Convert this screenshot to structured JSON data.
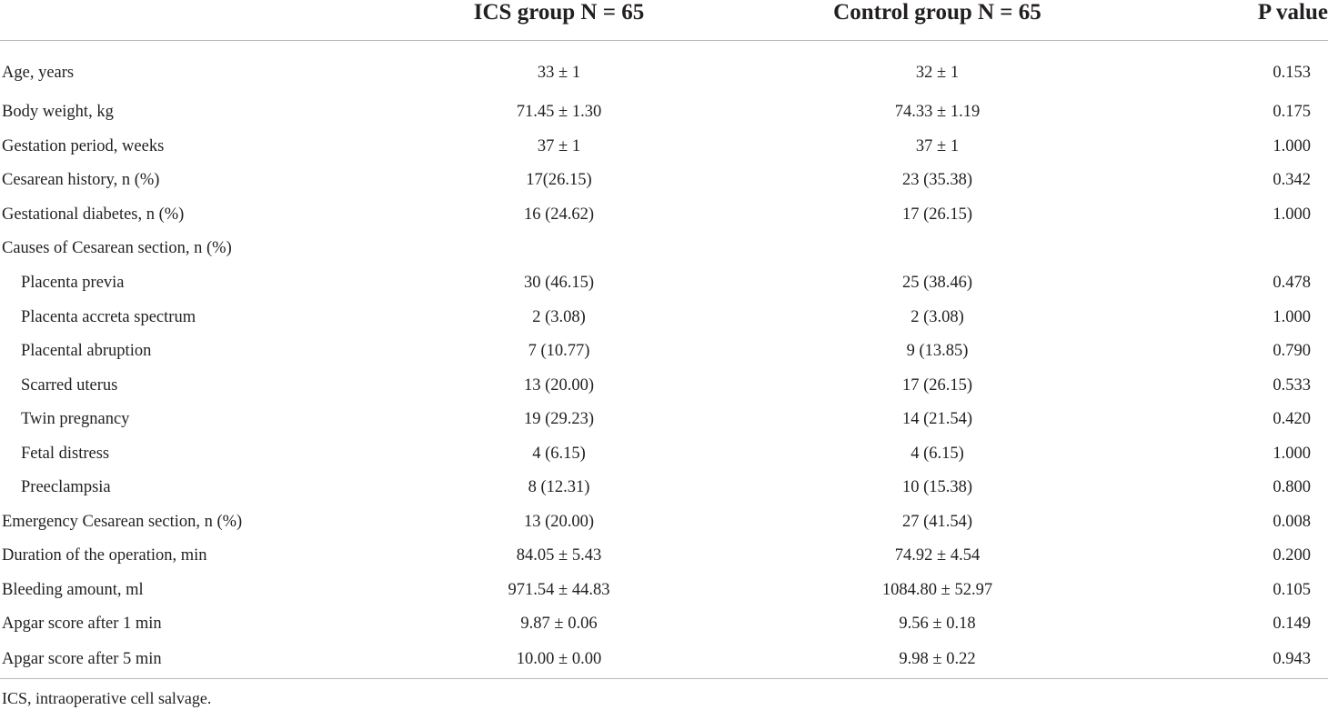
{
  "table": {
    "columns": [
      "",
      "ICS group N = 65",
      "Control group N = 65",
      "P value"
    ],
    "rows": [
      {
        "label": "Age, years",
        "indent": false,
        "ics": "33 ± 1",
        "control": "32 ± 1",
        "p": "0.153"
      },
      {
        "label": "Body weight, kg",
        "indent": false,
        "ics": "71.45 ± 1.30",
        "control": "74.33 ± 1.19",
        "p": "0.175"
      },
      {
        "label": "Gestation period, weeks",
        "indent": false,
        "ics": "37 ± 1",
        "control": "37 ± 1",
        "p": "1.000"
      },
      {
        "label": "Cesarean history, n (%)",
        "indent": false,
        "ics": "17(26.15)",
        "control": "23 (35.38)",
        "p": "0.342"
      },
      {
        "label": "Gestational diabetes, n (%)",
        "indent": false,
        "ics": "16 (24.62)",
        "control": "17 (26.15)",
        "p": "1.000"
      },
      {
        "label": "Causes of Cesarean section, n (%)",
        "indent": false,
        "ics": "",
        "control": "",
        "p": ""
      },
      {
        "label": "Placenta previa",
        "indent": true,
        "ics": "30 (46.15)",
        "control": "25 (38.46)",
        "p": "0.478"
      },
      {
        "label": "Placenta accreta spectrum",
        "indent": true,
        "ics": "2 (3.08)",
        "control": "2 (3.08)",
        "p": "1.000"
      },
      {
        "label": "Placental abruption",
        "indent": true,
        "ics": "7 (10.77)",
        "control": "9 (13.85)",
        "p": "0.790"
      },
      {
        "label": "Scarred uterus",
        "indent": true,
        "ics": "13 (20.00)",
        "control": "17 (26.15)",
        "p": "0.533"
      },
      {
        "label": "Twin pregnancy",
        "indent": true,
        "ics": "19 (29.23)",
        "control": "14 (21.54)",
        "p": "0.420"
      },
      {
        "label": "Fetal distress",
        "indent": true,
        "ics": "4 (6.15)",
        "control": "4 (6.15)",
        "p": "1.000"
      },
      {
        "label": "Preeclampsia",
        "indent": true,
        "ics": "8 (12.31)",
        "control": "10 (15.38)",
        "p": "0.800"
      },
      {
        "label": "Emergency Cesarean section, n (%)",
        "indent": false,
        "ics": "13 (20.00)",
        "control": "27 (41.54)",
        "p": "0.008"
      },
      {
        "label": "Duration of the operation, min",
        "indent": false,
        "ics": "84.05 ± 5.43",
        "control": "74.92 ± 4.54",
        "p": "0.200"
      },
      {
        "label": "Bleeding amount, ml",
        "indent": false,
        "ics": "971.54 ± 44.83",
        "control": "1084.80 ± 52.97",
        "p": "0.105"
      },
      {
        "label": "Apgar score after 1 min",
        "indent": false,
        "ics": "9.87 ± 0.06",
        "control": "9.56 ± 0.18",
        "p": "0.149"
      },
      {
        "label": "Apgar score after 5 min",
        "indent": false,
        "ics": "10.00 ± 0.00",
        "control": "9.98 ± 0.22",
        "p": "0.943"
      }
    ]
  },
  "footnote": "ICS, intraoperative cell salvage."
}
